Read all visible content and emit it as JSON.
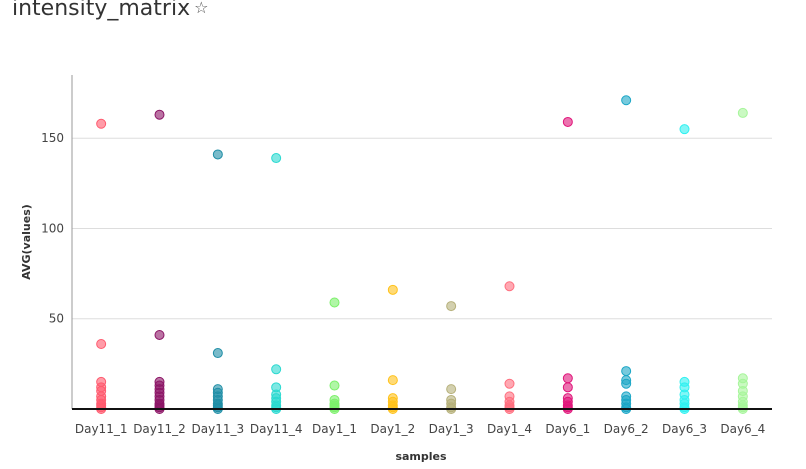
{
  "title": "intensity_matrix",
  "chart_data": {
    "type": "scatter",
    "xlabel": "samples",
    "ylabel": "AVG(values)",
    "ylim": [
      0,
      185
    ],
    "yticks": [
      50,
      100,
      150
    ],
    "grid": true,
    "categories": [
      "Day11_1",
      "Day11_2",
      "Day11_3",
      "Day11_4",
      "Day1_1",
      "Day1_2",
      "Day1_3",
      "Day1_4",
      "Day6_1",
      "Day6_2",
      "Day6_3",
      "Day6_4"
    ],
    "colors": [
      "#ff5a6e",
      "#8c1566",
      "#1f8ea6",
      "#2ad9d0",
      "#7cf06a",
      "#ffc21a",
      "#b6b07a",
      "#ff6e7e",
      "#e0157a",
      "#1aa6c6",
      "#2ef0f0",
      "#a6f59a"
    ],
    "series": [
      {
        "category": "Day11_1",
        "values": [
          158,
          36,
          15,
          12,
          10,
          7,
          5,
          3,
          2,
          1,
          0
        ]
      },
      {
        "category": "Day11_2",
        "values": [
          163,
          41,
          15,
          13,
          11,
          9,
          7,
          5,
          3,
          2,
          1,
          0
        ]
      },
      {
        "category": "Day11_3",
        "values": [
          141,
          31,
          11,
          9,
          7,
          5,
          3,
          2,
          1,
          0
        ]
      },
      {
        "category": "Day11_4",
        "values": [
          139,
          22,
          12,
          8,
          6,
          4,
          2,
          1,
          0
        ]
      },
      {
        "category": "Day1_1",
        "values": [
          59,
          13,
          5,
          3,
          2,
          1,
          0
        ]
      },
      {
        "category": "Day1_2",
        "values": [
          66,
          16,
          6,
          4,
          2,
          1,
          0
        ]
      },
      {
        "category": "Day1_3",
        "values": [
          57,
          11,
          5,
          3,
          1,
          0
        ]
      },
      {
        "category": "Day1_4",
        "values": [
          68,
          14,
          7,
          4,
          2,
          1,
          0
        ]
      },
      {
        "category": "Day6_1",
        "values": [
          159,
          17,
          12,
          6,
          4,
          2,
          1,
          0
        ]
      },
      {
        "category": "Day6_2",
        "values": [
          171,
          21,
          16,
          14,
          7,
          5,
          3,
          1,
          0
        ]
      },
      {
        "category": "Day6_3",
        "values": [
          155,
          15,
          12,
          8,
          5,
          3,
          1,
          0
        ]
      },
      {
        "category": "Day6_4",
        "values": [
          164,
          17,
          14,
          10,
          7,
          4,
          2,
          1,
          0
        ]
      }
    ]
  }
}
